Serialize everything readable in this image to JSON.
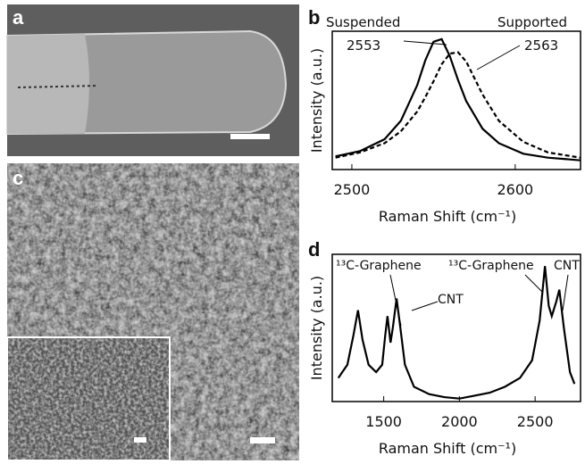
{
  "images": [
    {
      "label": "a"
    },
    {
      "label": "c"
    }
  ],
  "chart_data": [
    {
      "type": "line",
      "label": "b",
      "ylabel": "Intensity (a.u.)",
      "xlabel": "Raman Shift (cm⁻¹)",
      "annotations": [
        "Suspended",
        "2553",
        "Supported",
        "2563"
      ],
      "x": [
        2490,
        2505,
        2520,
        2530,
        2540,
        2545,
        2550,
        2555,
        2560,
        2565,
        2570,
        2580,
        2590,
        2605,
        2620,
        2640
      ],
      "series": [
        {
          "color": "#000000",
          "dash": false,
          "values": [
            0.1,
            0.14,
            0.23,
            0.37,
            0.64,
            0.83,
            0.97,
            0.99,
            0.86,
            0.68,
            0.52,
            0.31,
            0.2,
            0.12,
            0.09,
            0.07
          ]
        },
        {
          "color": "#000000",
          "dash": true,
          "values": [
            0.09,
            0.13,
            0.2,
            0.29,
            0.44,
            0.55,
            0.67,
            0.8,
            0.88,
            0.89,
            0.82,
            0.57,
            0.37,
            0.21,
            0.13,
            0.09
          ]
        }
      ],
      "xlim": [
        2488,
        2640
      ],
      "xticks": [
        2500,
        2600
      ],
      "ylim": [
        0,
        1.05
      ]
    },
    {
      "type": "line",
      "label": "d",
      "ylabel": "Intensity (a.u.)",
      "xlabel": "Raman Shift (cm⁻¹)",
      "annotations": [
        "¹³C-Graphene",
        "CNT",
        "¹³C-Graphene",
        "CNT"
      ],
      "x": [
        1200,
        1260,
        1300,
        1330,
        1360,
        1400,
        1450,
        1490,
        1510,
        1525,
        1545,
        1560,
        1585,
        1610,
        1640,
        1700,
        1800,
        1900,
        2000,
        2100,
        2200,
        2300,
        2400,
        2480,
        2530,
        2565,
        2590,
        2610,
        2640,
        2660,
        2690,
        2730,
        2760
      ],
      "series": [
        {
          "color": "#000000",
          "dash": false,
          "values": [
            0.16,
            0.25,
            0.45,
            0.62,
            0.42,
            0.25,
            0.2,
            0.25,
            0.45,
            0.58,
            0.4,
            0.5,
            0.7,
            0.5,
            0.25,
            0.1,
            0.05,
            0.03,
            0.02,
            0.04,
            0.06,
            0.1,
            0.16,
            0.28,
            0.55,
            0.92,
            0.65,
            0.58,
            0.68,
            0.76,
            0.5,
            0.2,
            0.12
          ]
        }
      ],
      "xlim": [
        1160,
        2800
      ],
      "xticks": [
        1500,
        2000,
        2500
      ],
      "ylim": [
        0,
        1
      ]
    }
  ]
}
